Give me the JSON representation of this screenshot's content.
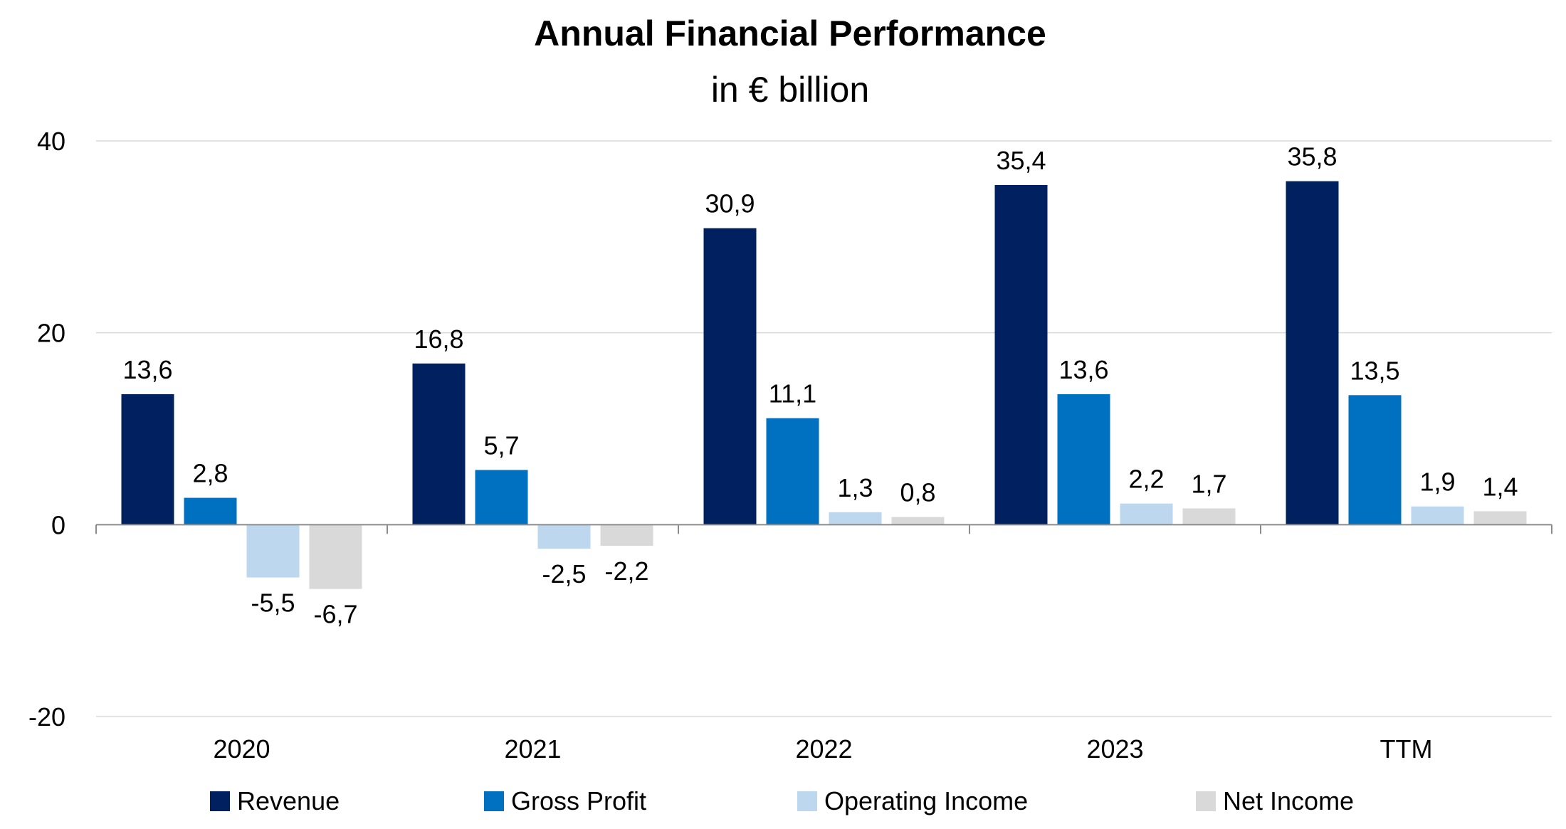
{
  "chart_data": {
    "type": "bar",
    "title": "Annual Financial Performance",
    "subtitle": "in € billion",
    "categories": [
      "2020",
      "2021",
      "2022",
      "2023",
      "TTM"
    ],
    "ylim": [
      -20,
      40
    ],
    "yticks": [
      -20,
      0,
      20,
      40
    ],
    "ytick_labels": [
      "-20",
      "0",
      "20",
      "40"
    ],
    "grid": true,
    "legend_position": "bottom",
    "series": [
      {
        "name": "Revenue",
        "color": "#002060",
        "values": [
          13.6,
          16.8,
          30.9,
          35.4,
          35.8
        ],
        "labels": [
          "13,6",
          "16,8",
          "30,9",
          "35,4",
          "35,8"
        ]
      },
      {
        "name": "Gross Profit",
        "color": "#0070c0",
        "values": [
          2.8,
          5.7,
          11.1,
          13.6,
          13.5
        ],
        "labels": [
          "2,8",
          "5,7",
          "11,1",
          "13,6",
          "13,5"
        ]
      },
      {
        "name": "Operating Income",
        "color": "#bdd7ee",
        "values": [
          -5.5,
          -2.5,
          1.3,
          2.2,
          1.9
        ],
        "labels": [
          "-5,5",
          "-2,5",
          "1,3",
          "2,2",
          "1,9"
        ]
      },
      {
        "name": "Net Income",
        "color": "#d9d9d9",
        "values": [
          -6.7,
          -2.2,
          0.8,
          1.7,
          1.4
        ],
        "labels": [
          "-6,7",
          "-2,2",
          "0,8",
          "1,7",
          "1,4"
        ]
      }
    ]
  }
}
